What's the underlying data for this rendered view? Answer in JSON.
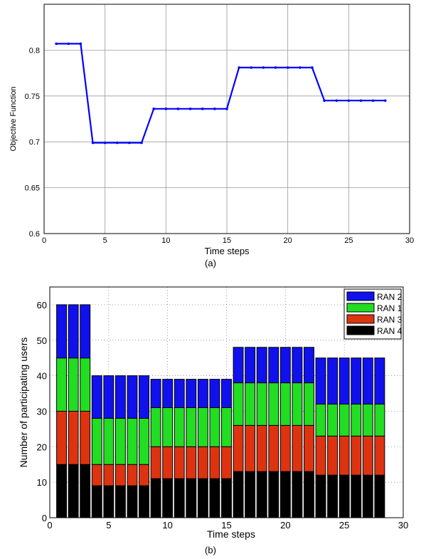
{
  "chart_data": [
    {
      "type": "line",
      "caption": "(a)",
      "xlabel": "Time steps",
      "ylabel": "Objective Function",
      "xlim": [
        0,
        30
      ],
      "ylim": [
        0.6,
        0.85
      ],
      "xticks": [
        0,
        5,
        10,
        15,
        20,
        25,
        30
      ],
      "yticks": [
        0.6,
        0.65,
        0.7,
        0.75,
        0.8
      ],
      "grid": true,
      "series_color": "#0000ff",
      "x": [
        1,
        2,
        3,
        4,
        5,
        6,
        7,
        8,
        9,
        10,
        11,
        12,
        13,
        14,
        15,
        16,
        17,
        18,
        19,
        20,
        21,
        22,
        23,
        24,
        25,
        26,
        27,
        28
      ],
      "y": [
        0.807,
        0.807,
        0.807,
        0.699,
        0.699,
        0.699,
        0.699,
        0.699,
        0.736,
        0.736,
        0.736,
        0.736,
        0.736,
        0.736,
        0.736,
        0.781,
        0.781,
        0.781,
        0.781,
        0.781,
        0.781,
        0.781,
        0.745,
        0.745,
        0.745,
        0.745,
        0.745,
        0.745
      ]
    },
    {
      "type": "bar",
      "stacked": true,
      "caption": "(b)",
      "xlabel": "Time steps",
      "ylabel": "Number of participating users",
      "xlim": [
        0,
        30
      ],
      "ylim": [
        0,
        65
      ],
      "xticks": [
        0,
        5,
        10,
        15,
        20,
        25,
        30
      ],
      "yticks": [
        0,
        10,
        20,
        30,
        40,
        50,
        60
      ],
      "grid": "dotted",
      "legend_position": "top-right",
      "x": [
        1,
        2,
        3,
        4,
        5,
        6,
        7,
        8,
        9,
        10,
        11,
        12,
        13,
        14,
        15,
        16,
        17,
        18,
        19,
        20,
        21,
        22,
        23,
        24,
        25,
        26,
        27,
        28
      ],
      "series": [
        {
          "name": "RAN 4",
          "color": "#000000",
          "values": [
            15,
            15,
            15,
            9,
            9,
            9,
            9,
            9,
            11,
            11,
            11,
            11,
            11,
            11,
            11,
            13,
            13,
            13,
            13,
            13,
            13,
            13,
            12,
            12,
            12,
            12,
            12,
            12
          ]
        },
        {
          "name": "RAN 3",
          "color": "#dd3311",
          "values": [
            15,
            15,
            15,
            6,
            6,
            6,
            6,
            6,
            9,
            9,
            9,
            9,
            9,
            9,
            9,
            13,
            13,
            13,
            13,
            13,
            13,
            13,
            11,
            11,
            11,
            11,
            11,
            11
          ]
        },
        {
          "name": "RAN 1",
          "color": "#22dd22",
          "values": [
            15,
            15,
            15,
            13,
            13,
            13,
            13,
            13,
            11,
            11,
            11,
            11,
            11,
            11,
            11,
            12,
            12,
            12,
            12,
            12,
            12,
            12,
            9,
            9,
            9,
            9,
            9,
            9
          ]
        },
        {
          "name": "RAN 2",
          "color": "#1111ee",
          "values": [
            15,
            15,
            15,
            12,
            12,
            12,
            12,
            12,
            8,
            8,
            8,
            8,
            8,
            8,
            8,
            10,
            10,
            10,
            10,
            10,
            10,
            10,
            13,
            13,
            13,
            13,
            13,
            13
          ]
        }
      ],
      "legend_order": [
        "RAN 2",
        "RAN 1",
        "RAN 3",
        "RAN 4"
      ]
    }
  ]
}
